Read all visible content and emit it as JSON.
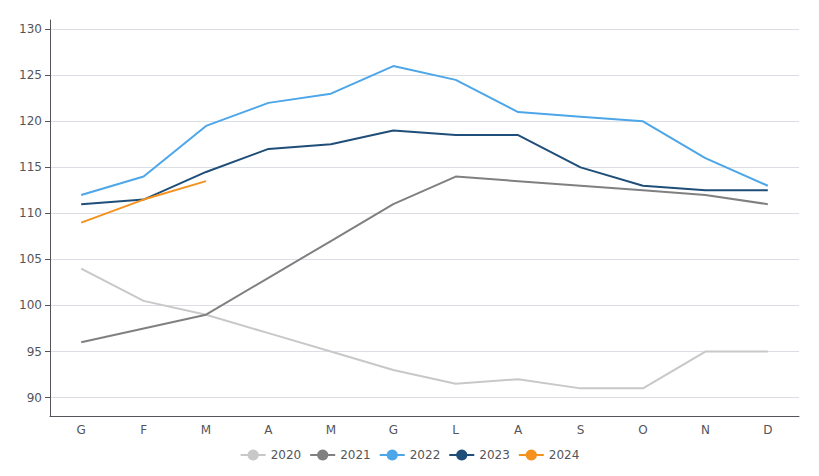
{
  "chart_data": {
    "type": "line",
    "categories": [
      "G",
      "F",
      "M",
      "A",
      "M",
      "G",
      "L",
      "A",
      "S",
      "O",
      "N",
      "D"
    ],
    "series": [
      {
        "name": "2020",
        "color": "#c8c8c8",
        "values": [
          104,
          100.5,
          99,
          97,
          95,
          93,
          91.5,
          92,
          91,
          91,
          95,
          95
        ]
      },
      {
        "name": "2021",
        "color": "#808080",
        "values": [
          96,
          97.5,
          99,
          103,
          107,
          111,
          114,
          113.5,
          113,
          112.5,
          112,
          111
        ]
      },
      {
        "name": "2022",
        "color": "#4da6e8",
        "values": [
          112,
          114,
          119.5,
          122,
          123,
          126,
          124.5,
          121,
          120.5,
          120,
          116,
          113
        ]
      },
      {
        "name": "2023",
        "color": "#1f4e79",
        "values": [
          111,
          111.5,
          114.5,
          117,
          117.5,
          119,
          118.5,
          118.5,
          115,
          113,
          112.5,
          112.5
        ]
      },
      {
        "name": "2024",
        "color": "#f5921e",
        "values": [
          109,
          111.5,
          113.5,
          null,
          null,
          null,
          null,
          null,
          null,
          null,
          null,
          null
        ]
      }
    ],
    "ylim": [
      88,
      131
    ],
    "yticks": [
      90,
      95,
      100,
      105,
      110,
      115,
      120,
      125,
      130
    ],
    "grid": true,
    "legend": "bottom"
  }
}
